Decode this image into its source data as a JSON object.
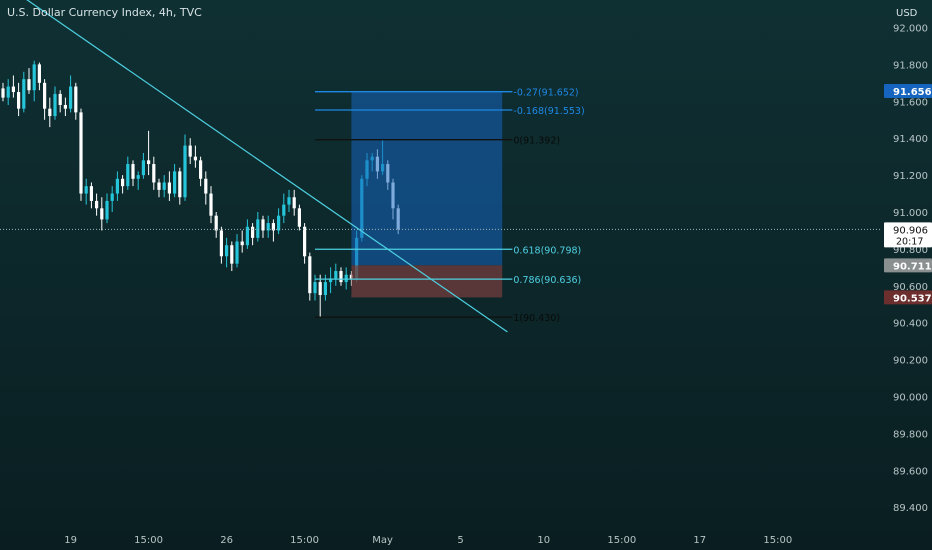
{
  "header": {
    "title": "U.S. Dollar Currency Index, 4h, TVC",
    "currency": "USD"
  },
  "colors": {
    "bg_top": "#0e2f32",
    "bg_bottom": "#0a1f22",
    "bull": "#26c6da",
    "bear": "#ffffff",
    "wick": "#e0f7fa",
    "trendline": "#4dd0e1",
    "target_zone": "#1565c0",
    "stop_zone": "#6d3b3b",
    "fib_blue": "#1e88e5",
    "fib_cyan": "#4dd0e1",
    "fib_black": "#111111",
    "price_axis_text": "#b8c4c6"
  },
  "chart_data": {
    "type": "candlestick",
    "symbol": "U.S. Dollar Currency Index",
    "interval": "4h",
    "source": "TVC",
    "y_axis": {
      "label": "USD",
      "range": [
        89.32,
        92.2
      ],
      "ticks": [
        {
          "value": 92.0,
          "label": "92.000"
        },
        {
          "value": 91.8,
          "label": "91.800"
        },
        {
          "value": 91.6,
          "label": "91.600"
        },
        {
          "value": 91.4,
          "label": "91.400"
        },
        {
          "value": 91.2,
          "label": "91.200"
        },
        {
          "value": 91.0,
          "label": "91.000"
        },
        {
          "value": 90.8,
          "label": "90.800"
        },
        {
          "value": 90.6,
          "label": "90.600"
        },
        {
          "value": 90.4,
          "label": "90.400"
        },
        {
          "value": 90.2,
          "label": "90.200"
        },
        {
          "value": 90.0,
          "label": "90.000"
        },
        {
          "value": 89.8,
          "label": "89.800"
        },
        {
          "value": 89.6,
          "label": "89.600"
        },
        {
          "value": 89.4,
          "label": "89.400"
        }
      ]
    },
    "x_axis": {
      "range": [
        0,
        168
      ],
      "ticks": [
        {
          "bar": 13,
          "label": "19"
        },
        {
          "bar": 28,
          "label": "15:00"
        },
        {
          "bar": 43,
          "label": "26"
        },
        {
          "bar": 58,
          "label": "15:00"
        },
        {
          "bar": 73,
          "label": "May"
        },
        {
          "bar": 88,
          "label": "5"
        },
        {
          "bar": 104,
          "label": "10"
        },
        {
          "bar": 119,
          "label": "15:00"
        },
        {
          "bar": 134,
          "label": "17"
        },
        {
          "bar": 149,
          "label": "15:00"
        }
      ]
    },
    "candles": [
      [
        91.67,
        91.7,
        91.6,
        91.62
      ],
      [
        91.62,
        91.72,
        91.58,
        91.68
      ],
      [
        91.68,
        91.74,
        91.62,
        91.65
      ],
      [
        91.65,
        91.7,
        91.52,
        91.56
      ],
      [
        91.56,
        91.76,
        91.54,
        91.72
      ],
      [
        91.72,
        91.78,
        91.64,
        91.66
      ],
      [
        91.66,
        91.82,
        91.6,
        91.8
      ],
      [
        91.8,
        91.81,
        91.66,
        91.7
      ],
      [
        91.7,
        91.72,
        91.5,
        91.56
      ],
      [
        91.56,
        91.62,
        91.46,
        91.52
      ],
      [
        91.52,
        91.68,
        91.5,
        91.64
      ],
      [
        91.64,
        91.66,
        91.54,
        91.58
      ],
      [
        91.58,
        91.62,
        91.52,
        91.56
      ],
      [
        91.56,
        91.74,
        91.54,
        91.68
      ],
      [
        91.68,
        91.7,
        91.5,
        91.54
      ],
      [
        91.54,
        91.56,
        91.06,
        91.1
      ],
      [
        91.1,
        91.18,
        91.04,
        91.14
      ],
      [
        91.14,
        91.16,
        91.02,
        91.06
      ],
      [
        91.06,
        91.1,
        90.98,
        91.02
      ],
      [
        91.02,
        91.08,
        90.9,
        90.96
      ],
      [
        90.96,
        91.1,
        90.94,
        91.06
      ],
      [
        91.06,
        91.14,
        91.0,
        91.1
      ],
      [
        91.1,
        91.22,
        91.06,
        91.18
      ],
      [
        91.18,
        91.2,
        91.1,
        91.14
      ],
      [
        91.14,
        91.3,
        91.12,
        91.26
      ],
      [
        91.26,
        91.28,
        91.14,
        91.18
      ],
      [
        91.18,
        91.22,
        91.12,
        91.2
      ],
      [
        91.2,
        91.32,
        91.18,
        91.28
      ],
      [
        91.28,
        91.44,
        91.2,
        91.26
      ],
      [
        91.26,
        91.3,
        91.12,
        91.16
      ],
      [
        91.16,
        91.18,
        91.08,
        91.12
      ],
      [
        91.12,
        91.2,
        91.08,
        91.16
      ],
      [
        91.16,
        91.22,
        91.06,
        91.1
      ],
      [
        91.1,
        91.26,
        91.08,
        91.22
      ],
      [
        91.22,
        91.24,
        91.04,
        91.08
      ],
      [
        91.08,
        91.42,
        91.06,
        91.36
      ],
      [
        91.36,
        91.4,
        91.26,
        91.3
      ],
      [
        91.3,
        91.36,
        91.24,
        91.28
      ],
      [
        91.28,
        91.3,
        91.14,
        91.18
      ],
      [
        91.18,
        91.22,
        91.04,
        91.1
      ],
      [
        91.1,
        91.14,
        90.94,
        90.98
      ],
      [
        90.98,
        91.0,
        90.86,
        90.9
      ],
      [
        90.9,
        90.92,
        90.72,
        90.76
      ],
      [
        90.76,
        90.86,
        90.7,
        90.82
      ],
      [
        90.82,
        90.84,
        90.68,
        90.72
      ],
      [
        90.72,
        90.88,
        90.7,
        90.84
      ],
      [
        90.84,
        90.9,
        90.78,
        90.82
      ],
      [
        90.82,
        90.96,
        90.8,
        90.92
      ],
      [
        90.92,
        90.94,
        90.82,
        90.86
      ],
      [
        90.86,
        91.0,
        90.84,
        90.96
      ],
      [
        90.96,
        90.98,
        90.86,
        90.9
      ],
      [
        90.9,
        90.98,
        90.86,
        90.94
      ],
      [
        90.94,
        90.96,
        90.84,
        90.9
      ],
      [
        90.9,
        91.02,
        90.88,
        90.98
      ],
      [
        90.98,
        91.1,
        90.94,
        91.04
      ],
      [
        91.04,
        91.12,
        91.0,
        91.08
      ],
      [
        91.08,
        91.12,
        90.98,
        91.02
      ],
      [
        91.02,
        91.04,
        90.9,
        90.92
      ],
      [
        90.92,
        90.94,
        90.72,
        90.76
      ],
      [
        90.76,
        90.78,
        90.52,
        90.56
      ],
      [
        90.56,
        90.66,
        90.52,
        90.62
      ],
      [
        90.62,
        90.66,
        90.43,
        90.55
      ],
      [
        90.55,
        90.66,
        90.52,
        90.62
      ],
      [
        90.62,
        90.7,
        90.56,
        90.64
      ],
      [
        90.64,
        90.72,
        90.6,
        90.68
      ],
      [
        90.68,
        90.7,
        90.6,
        90.62
      ],
      [
        90.62,
        90.7,
        90.58,
        90.66
      ],
      [
        90.66,
        90.68,
        90.6,
        90.64
      ],
      [
        90.64,
        90.9,
        90.62,
        90.86
      ],
      [
        90.86,
        91.2,
        90.84,
        91.18
      ],
      [
        91.18,
        91.32,
        91.14,
        91.28
      ],
      [
        91.28,
        91.32,
        91.22,
        91.3
      ],
      [
        91.3,
        91.34,
        91.18,
        91.22
      ],
      [
        91.22,
        91.39,
        91.2,
        91.26
      ],
      [
        91.26,
        91.28,
        91.12,
        91.16
      ],
      [
        91.16,
        91.18,
        90.96,
        91.02
      ],
      [
        91.02,
        91.04,
        90.88,
        90.906
      ]
    ]
  },
  "drawings": {
    "trendline": {
      "start_bar": 0,
      "start_price": 92.24,
      "end_bar": 97,
      "end_price": 90.35
    },
    "fibonacci": [
      {
        "level": "-0.27",
        "price": 91.652,
        "label": "-0.27(91.652)",
        "color": "blue"
      },
      {
        "level": "-0.168",
        "price": 91.553,
        "label": "-0.168(91.553)",
        "color": "blue"
      },
      {
        "level": "0",
        "price": 91.392,
        "label": "0(91.392)",
        "color": "black"
      },
      {
        "level": "0.618",
        "price": 90.798,
        "label": "0.618(90.798)",
        "color": "cyan"
      },
      {
        "level": "0.786",
        "price": 90.636,
        "label": "0.786(90.636)",
        "color": "cyan"
      },
      {
        "level": "1",
        "price": 90.43,
        "label": "1(90.430)",
        "color": "black"
      }
    ],
    "fib_bar_start": 60,
    "fib_bar_end": 97,
    "position": {
      "start_bar": 67,
      "end_bar": 96,
      "entry": 90.711,
      "target": 91.656,
      "stop": 90.537
    }
  },
  "price_labels": {
    "current": {
      "value": 90.906,
      "text": "90.906",
      "countdown": "20:17"
    },
    "target": {
      "value": 91.656,
      "text": "91.656"
    },
    "entry": {
      "value": 90.711,
      "text": "90.711"
    },
    "stop": {
      "value": 90.537,
      "text": "90.537"
    }
  }
}
